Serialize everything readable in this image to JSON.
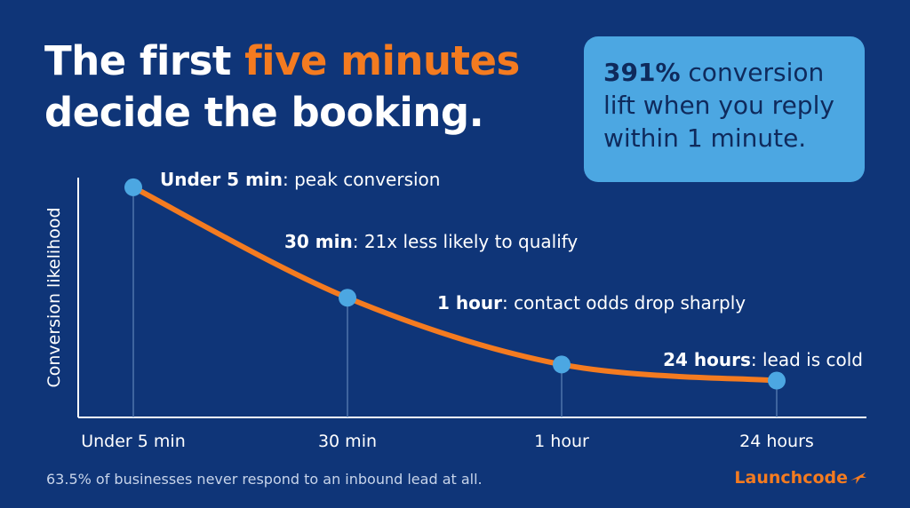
{
  "headline": {
    "part1": "The first ",
    "accent": "five minutes",
    "line2": "decide the booking."
  },
  "callout": {
    "stat": "391%",
    "text_line1": " conversion",
    "text_line2": "lift when you reply",
    "text_line3": "within 1 minute."
  },
  "chart_data": {
    "type": "line",
    "categories": [
      "Under 5 min",
      "30 min",
      "1 hour",
      "24 hours"
    ],
    "values": [
      100,
      52,
      23,
      16
    ],
    "ylabel": "Conversion likelihood",
    "xlabel": "",
    "ylim": [
      0,
      110
    ],
    "grid": false,
    "annotations": [
      {
        "bold": "Under 5 min",
        "text": ": peak conversion"
      },
      {
        "bold": "30 min",
        "text": ": 21x less likely to qualify"
      },
      {
        "bold": "1 hour",
        "text": ": contact odds drop sharply"
      },
      {
        "bold": "24 hours",
        "text": ": lead is cold"
      }
    ],
    "colors": {
      "line": "#f47b20",
      "point": "#4ca7e2",
      "axis": "#ffffff",
      "drop": "#5f84b8"
    }
  },
  "footnote": "63.5% of businesses never respond to an inbound lead at all.",
  "logo": {
    "text": "Launchcode",
    "icon": "plane-icon"
  }
}
